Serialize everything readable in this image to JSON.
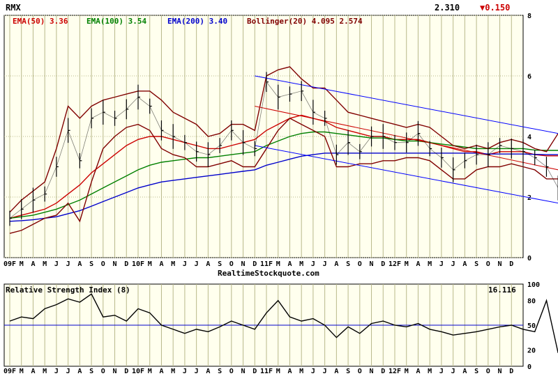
{
  "symbol": "RMX",
  "last_price": "2.310",
  "change": "▼0.150",
  "colors": {
    "background": "#ffffee",
    "grid": "#b8b88a",
    "price": "#000000",
    "ema50": "#cc0000",
    "ema100": "#008000",
    "ema200": "#0000cc",
    "bollinger": "#800000",
    "channel": "#0000ff",
    "rsi_line": "#000000",
    "rsi_mid": "#0000cc",
    "down": "#cc0000"
  },
  "legend": {
    "ema50": "EMA(50) 3.36",
    "ema100": "EMA(100) 3.54",
    "ema200": "EMA(200) 3.40",
    "bollinger": "Bollinger(20) 4.095 2.574"
  },
  "watermark": "RealtimeStockquote.com",
  "price_axis_ticks": [
    "0",
    "2",
    "4",
    "6",
    "8"
  ],
  "month_labels": [
    "09F",
    "M",
    "A",
    "M",
    "J",
    "J",
    "A",
    "S",
    "O",
    "N",
    "D",
    "10F",
    "M",
    "A",
    "M",
    "J",
    "J",
    "A",
    "S",
    "O",
    "N",
    "D",
    "11F",
    "M",
    "A",
    "M",
    "J",
    "J",
    "A",
    "S",
    "O",
    "N",
    "D",
    "12F",
    "M",
    "A",
    "M",
    "J",
    "J",
    "A",
    "S",
    "O",
    "N",
    "D"
  ],
  "rsi": {
    "title": "Relative Strength Index (8)",
    "value": "16.116",
    "axis_ticks": [
      "0",
      "20",
      "50",
      "80",
      "100"
    ]
  },
  "chart_data": [
    {
      "type": "line",
      "title": "RMX",
      "ylim": [
        0,
        8
      ],
      "grid": true,
      "x_range": [
        "2009-01",
        "2012-12"
      ],
      "series": [
        {
          "name": "Price",
          "x": [
            "2009-01",
            "2009-02",
            "2009-03",
            "2009-04",
            "2009-05",
            "2009-06",
            "2009-07",
            "2009-08",
            "2009-09",
            "2009-10",
            "2009-11",
            "2009-12",
            "2010-01",
            "2010-02",
            "2010-03",
            "2010-04",
            "2010-05",
            "2010-06",
            "2010-07",
            "2010-08",
            "2010-09",
            "2010-10",
            "2010-11",
            "2010-12",
            "2011-01",
            "2011-02",
            "2011-03",
            "2011-04",
            "2011-05",
            "2011-06",
            "2011-07",
            "2011-08",
            "2011-09",
            "2011-10",
            "2011-11",
            "2011-12",
            "2012-01",
            "2012-02",
            "2012-03",
            "2012-04",
            "2012-05",
            "2012-06",
            "2012-07",
            "2012-08",
            "2012-09",
            "2012-10",
            "2012-11",
            "2012-12"
          ],
          "values": [
            1.3,
            1.6,
            1.9,
            2.1,
            3.0,
            4.2,
            3.2,
            4.6,
            4.8,
            4.6,
            4.9,
            5.3,
            5.0,
            4.2,
            4.0,
            3.8,
            3.5,
            3.4,
            3.7,
            4.2,
            3.8,
            3.6,
            5.8,
            5.3,
            5.4,
            5.5,
            4.8,
            4.6,
            3.4,
            3.8,
            3.5,
            4.0,
            4.0,
            3.8,
            3.8,
            4.1,
            3.6,
            3.3,
            2.9,
            3.2,
            3.4,
            3.4,
            3.7,
            3.6,
            3.5,
            3.3,
            3.0,
            2.3
          ]
        },
        {
          "name": "EMA(50)",
          "values": [
            1.3,
            1.4,
            1.5,
            1.6,
            1.8,
            2.1,
            2.4,
            2.8,
            3.1,
            3.4,
            3.7,
            3.9,
            4.0,
            4.0,
            3.9,
            3.8,
            3.7,
            3.6,
            3.6,
            3.7,
            3.8,
            3.9,
            4.2,
            4.4,
            4.6,
            4.7,
            4.6,
            4.5,
            4.3,
            4.2,
            4.1,
            4.0,
            4.0,
            3.9,
            3.9,
            3.9,
            3.8,
            3.7,
            3.6,
            3.5,
            3.5,
            3.4,
            3.5,
            3.5,
            3.5,
            3.4,
            3.36,
            3.36
          ]
        },
        {
          "name": "EMA(100)",
          "values": [
            1.3,
            1.35,
            1.4,
            1.5,
            1.6,
            1.75,
            1.9,
            2.1,
            2.3,
            2.5,
            2.7,
            2.9,
            3.05,
            3.15,
            3.2,
            3.25,
            3.3,
            3.3,
            3.35,
            3.4,
            3.45,
            3.5,
            3.7,
            3.85,
            4.0,
            4.1,
            4.15,
            4.15,
            4.1,
            4.05,
            4.0,
            3.95,
            3.95,
            3.9,
            3.85,
            3.85,
            3.8,
            3.75,
            3.7,
            3.65,
            3.6,
            3.6,
            3.6,
            3.6,
            3.6,
            3.55,
            3.54,
            3.54
          ]
        },
        {
          "name": "EMA(200)",
          "values": [
            1.2,
            1.22,
            1.25,
            1.3,
            1.35,
            1.45,
            1.55,
            1.7,
            1.85,
            2.0,
            2.15,
            2.3,
            2.4,
            2.5,
            2.55,
            2.6,
            2.65,
            2.7,
            2.75,
            2.8,
            2.85,
            2.9,
            3.05,
            3.15,
            3.25,
            3.35,
            3.4,
            3.45,
            3.45,
            3.45,
            3.45,
            3.45,
            3.45,
            3.45,
            3.45,
            3.45,
            3.45,
            3.45,
            3.45,
            3.45,
            3.45,
            3.42,
            3.42,
            3.42,
            3.42,
            3.41,
            3.4,
            3.4
          ]
        },
        {
          "name": "Bollinger(20) upper",
          "values": [
            1.5,
            1.9,
            2.2,
            2.5,
            3.6,
            5.0,
            4.6,
            5.0,
            5.2,
            5.3,
            5.4,
            5.5,
            5.5,
            5.2,
            4.8,
            4.6,
            4.4,
            4.0,
            4.1,
            4.4,
            4.4,
            4.2,
            6.0,
            6.2,
            6.3,
            5.9,
            5.6,
            5.6,
            5.2,
            4.8,
            4.7,
            4.6,
            4.5,
            4.4,
            4.3,
            4.4,
            4.3,
            4.0,
            3.7,
            3.6,
            3.7,
            3.6,
            3.8,
            3.9,
            3.8,
            3.6,
            3.5,
            4.1
          ]
        },
        {
          "name": "Bollinger(20) lower",
          "values": [
            0.8,
            0.9,
            1.1,
            1.3,
            1.4,
            1.8,
            1.2,
            2.5,
            3.6,
            4.0,
            4.3,
            4.4,
            4.2,
            3.6,
            3.4,
            3.3,
            3.0,
            3.0,
            3.1,
            3.2,
            3.0,
            3.0,
            3.6,
            4.2,
            4.6,
            4.4,
            4.2,
            4.0,
            3.0,
            3.0,
            3.1,
            3.1,
            3.2,
            3.2,
            3.3,
            3.3,
            3.2,
            2.9,
            2.6,
            2.6,
            2.9,
            3.0,
            3.0,
            3.1,
            3.0,
            2.9,
            2.6,
            2.6
          ]
        }
      ],
      "trendlines": [
        {
          "name": "channel upper",
          "from": [
            "2010-10",
            6.0
          ],
          "to": [
            "2012-12",
            4.1
          ]
        },
        {
          "name": "channel lower",
          "from": [
            "2010-10",
            3.7
          ],
          "to": [
            "2012-12",
            1.8
          ]
        },
        {
          "name": "regression",
          "from": [
            "2010-10",
            5.0
          ],
          "to": [
            "2012-12",
            2.9
          ]
        }
      ]
    },
    {
      "type": "line",
      "title": "Relative Strength Index (8)",
      "ylim": [
        0,
        100
      ],
      "series": [
        {
          "name": "RSI(8)",
          "values": [
            55,
            60,
            58,
            70,
            75,
            82,
            78,
            88,
            60,
            62,
            55,
            70,
            65,
            50,
            45,
            40,
            45,
            42,
            48,
            55,
            50,
            45,
            65,
            80,
            60,
            55,
            58,
            50,
            35,
            48,
            40,
            52,
            55,
            50,
            48,
            52,
            45,
            42,
            38,
            40,
            42,
            45,
            48,
            50,
            45,
            42,
            80,
            16.116
          ]
        }
      ],
      "reference_line": 50
    }
  ]
}
